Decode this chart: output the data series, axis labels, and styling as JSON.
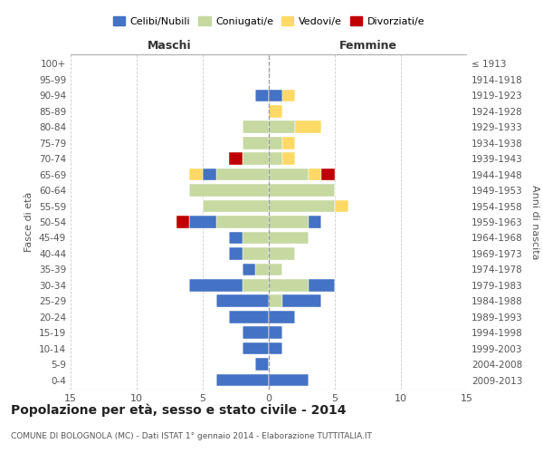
{
  "age_groups": [
    "100+",
    "95-99",
    "90-94",
    "85-89",
    "80-84",
    "75-79",
    "70-74",
    "65-69",
    "60-64",
    "55-59",
    "50-54",
    "45-49",
    "40-44",
    "35-39",
    "30-34",
    "25-29",
    "20-24",
    "15-19",
    "10-14",
    "5-9",
    "0-4"
  ],
  "birth_years": [
    "≤ 1913",
    "1914-1918",
    "1919-1923",
    "1924-1928",
    "1929-1933",
    "1934-1938",
    "1939-1943",
    "1944-1948",
    "1949-1953",
    "1954-1958",
    "1959-1963",
    "1964-1968",
    "1969-1973",
    "1974-1978",
    "1979-1983",
    "1984-1988",
    "1989-1993",
    "1994-1998",
    "1999-2003",
    "2004-2008",
    "2009-2013"
  ],
  "colors": {
    "celibi": "#4472c4",
    "coniugati": "#c5d9a0",
    "vedovi": "#ffd966",
    "divorziati": "#c00000"
  },
  "males": {
    "celibi": [
      0,
      0,
      1,
      0,
      0,
      0,
      0,
      1,
      0,
      0,
      2,
      1,
      1,
      1,
      4,
      4,
      3,
      2,
      2,
      1,
      4
    ],
    "coniugati": [
      0,
      0,
      0,
      0,
      2,
      2,
      2,
      4,
      6,
      5,
      4,
      2,
      2,
      1,
      2,
      0,
      0,
      0,
      0,
      0,
      0
    ],
    "vedovi": [
      0,
      0,
      0,
      0,
      0,
      0,
      0,
      1,
      0,
      0,
      0,
      0,
      0,
      0,
      0,
      0,
      0,
      0,
      0,
      0,
      0
    ],
    "divorziati": [
      0,
      0,
      0,
      0,
      0,
      0,
      1,
      0,
      0,
      0,
      1,
      0,
      0,
      0,
      0,
      0,
      0,
      0,
      0,
      0,
      0
    ]
  },
  "females": {
    "celibi": [
      0,
      0,
      1,
      0,
      0,
      0,
      0,
      0,
      0,
      0,
      1,
      0,
      0,
      0,
      2,
      3,
      2,
      1,
      1,
      0,
      3
    ],
    "coniugati": [
      0,
      0,
      0,
      0,
      2,
      1,
      1,
      3,
      5,
      5,
      3,
      3,
      2,
      1,
      3,
      1,
      0,
      0,
      0,
      0,
      0
    ],
    "vedovi": [
      0,
      0,
      1,
      1,
      2,
      1,
      1,
      1,
      0,
      1,
      0,
      0,
      0,
      0,
      0,
      0,
      0,
      0,
      0,
      0,
      0
    ],
    "divorziati": [
      0,
      0,
      0,
      0,
      0,
      0,
      0,
      1,
      0,
      0,
      0,
      0,
      0,
      0,
      0,
      0,
      0,
      0,
      0,
      0,
      0
    ]
  },
  "xlim": 15,
  "title": "Popolazione per età, sesso e stato civile - 2014",
  "subtitle": "COMUNE DI BOLOGNOLA (MC) - Dati ISTAT 1° gennaio 2014 - Elaborazione TUTTITALIA.IT",
  "ylabel_left": "Fasce di età",
  "ylabel_right": "Anni di nascita",
  "xlabel_left": "Maschi",
  "xlabel_right": "Femmine"
}
